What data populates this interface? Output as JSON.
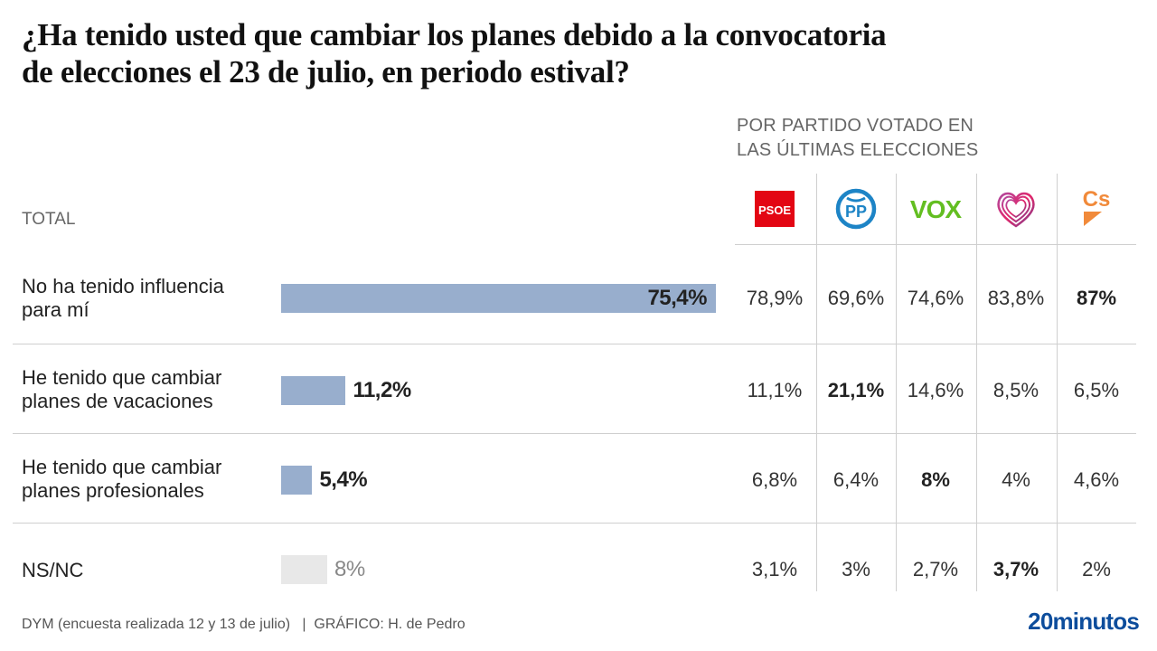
{
  "title_lines": [
    "¿Ha tenido usted que cambiar los planes debido a la convocatoria",
    "de elecciones el 23 de julio, en periodo estival?"
  ],
  "subhead_lines": [
    "POR PARTIDO VOTADO EN",
    "LAS ÚLTIMAS ELECCIONES"
  ],
  "total_label": "TOTAL",
  "parties": [
    {
      "name": "PSOE",
      "logo": "psoe-logo",
      "color": "#e30613"
    },
    {
      "name": "PP",
      "logo": "pp-logo",
      "color": "#1d84c6"
    },
    {
      "name": "VOX",
      "logo": "vox-logo",
      "color": "#63be21"
    },
    {
      "name": "Sumar",
      "logo": "sumar-heart-logo",
      "color": "#d7265b"
    },
    {
      "name": "Cs",
      "logo": "cs-logo",
      "color": "#f18a3a"
    }
  ],
  "footer": {
    "source": "DYM (encuesta realizada 12 y 13 de julio)   |  GRÁFICO: H. de Pedro",
    "brand": "20minutos"
  },
  "chart_data": {
    "type": "bar",
    "title": "¿Ha tenido usted que cambiar los planes debido a la convocatoria de elecciones el 23 de julio, en periodo estival?",
    "orientation": "horizontal",
    "categories": [
      "No ha tenido influencia para mí",
      "He tenido que cambiar planes de vacaciones",
      "He tenido que cambiar planes profesionales",
      "NS/NC"
    ],
    "category_lines": [
      [
        "No ha tenido influencia",
        "para mí"
      ],
      [
        "He tenido que cambiar",
        "planes de vacaciones"
      ],
      [
        "He tenido que cambiar",
        "planes profesionales"
      ],
      [
        "NS/NC"
      ]
    ],
    "total": {
      "name": "TOTAL",
      "values": [
        75.4,
        11.2,
        5.4,
        8
      ],
      "labels": [
        "75,4%",
        "11,2%",
        "5,4%",
        "8%"
      ],
      "colors": [
        "#98aecd",
        "#98aecd",
        "#98aecd",
        "#e8e8e8"
      ]
    },
    "series": [
      {
        "name": "PSOE",
        "values": [
          78.9,
          11.1,
          6.8,
          3.1
        ],
        "labels": [
          "78,9%",
          "11,1%",
          "6,8%",
          "3,1%"
        ],
        "bold": [
          false,
          false,
          false,
          false
        ]
      },
      {
        "name": "PP",
        "values": [
          69.6,
          21.1,
          6.4,
          3
        ],
        "labels": [
          "69,6%",
          "21,1%",
          "6,4%",
          "3%"
        ],
        "bold": [
          false,
          true,
          false,
          false
        ]
      },
      {
        "name": "VOX",
        "values": [
          74.6,
          14.6,
          8,
          2.7
        ],
        "labels": [
          "74,6%",
          "14,6%",
          "8%",
          "2,7%"
        ],
        "bold": [
          false,
          false,
          true,
          false
        ]
      },
      {
        "name": "Sumar",
        "values": [
          83.8,
          8.5,
          4,
          3.7
        ],
        "labels": [
          "83,8%",
          "8,5%",
          "4%",
          "3,7%"
        ],
        "bold": [
          false,
          false,
          false,
          true
        ]
      },
      {
        "name": "Cs",
        "values": [
          87,
          6.5,
          4.6,
          2
        ],
        "labels": [
          "87%",
          "6,5%",
          "4,6%",
          "2%"
        ],
        "bold": [
          true,
          false,
          false,
          false
        ]
      }
    ],
    "unit": "%",
    "grouping_label": "POR PARTIDO VOTADO EN LAS ÚLTIMAS ELECCIONES"
  }
}
